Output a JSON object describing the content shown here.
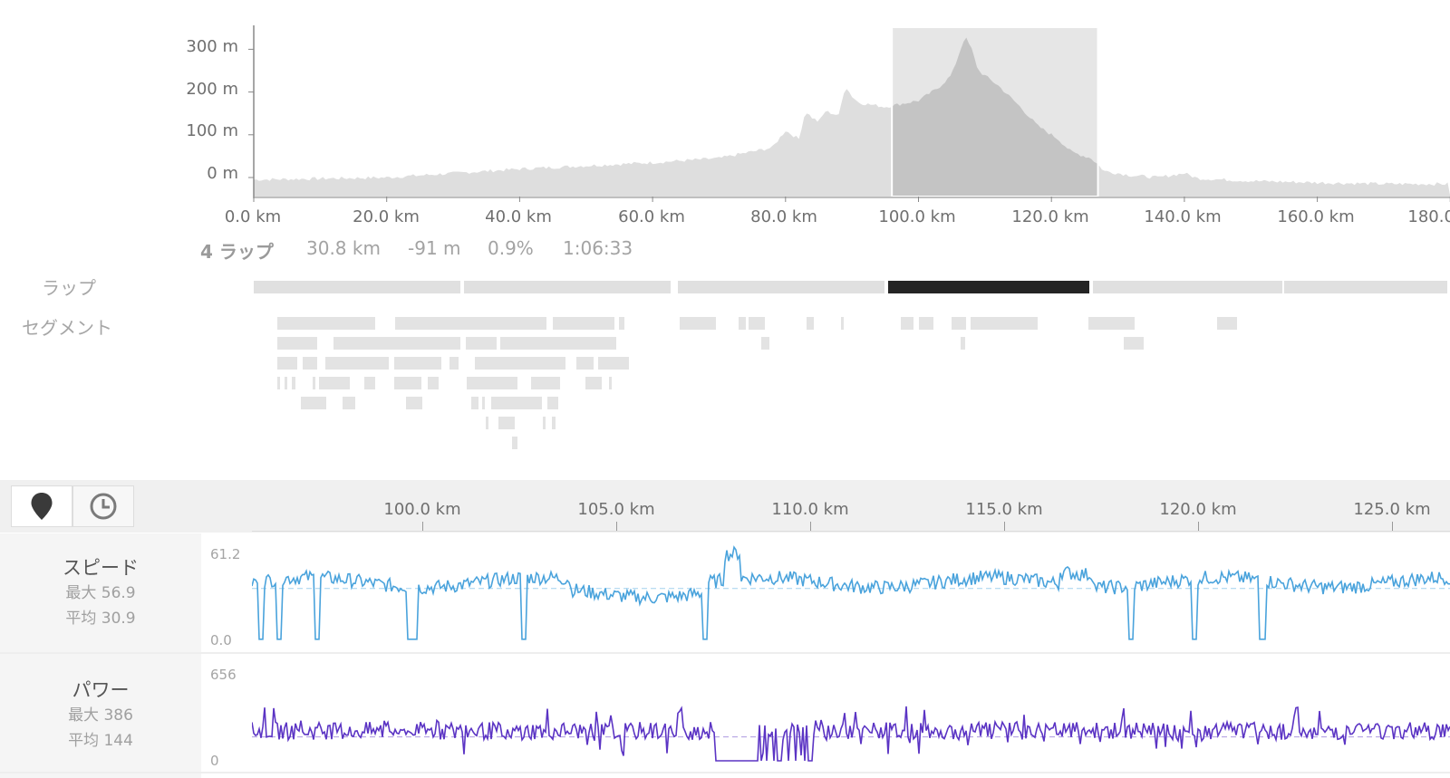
{
  "elevation_chart": {
    "y_ticks": [
      "300 m",
      "200 m",
      "100 m",
      "0 m"
    ],
    "x_ticks": [
      "0.0 km",
      "20.0 km",
      "40.0 km",
      "60.0 km",
      "80.0 km",
      "100.0 km",
      "120.0 km",
      "140.0 km",
      "160.0 km",
      "180.0 km"
    ],
    "selection_km": [
      96,
      127
    ]
  },
  "summary": {
    "lap_label": "4 ラップ",
    "distance": "30.8 km",
    "elevation": "-91 m",
    "grade": "0.9%",
    "time": "1:06:33"
  },
  "rows": {
    "laps_label": "ラップ",
    "segments_label": "セグメント"
  },
  "laps": {
    "count": 6,
    "active_index": 3
  },
  "toolbar": {
    "distance_button_icon": "map-pin-icon",
    "time_button_icon": "clock-icon"
  },
  "detail_axis": {
    "ticks": [
      "100.0 km",
      "105.0 km",
      "110.0 km",
      "115.0 km",
      "120.0 km",
      "125.0 km"
    ]
  },
  "speed": {
    "title": "スピード",
    "max_label": "最大 56.9",
    "avg_label": "平均 30.9",
    "scale_max": "61.2",
    "scale_min": "0.0",
    "color": "#4aa3dc"
  },
  "power": {
    "title": "パワー",
    "max_label": "最大 386",
    "avg_label": "平均 144",
    "scale_max": "656",
    "scale_min": "0",
    "color": "#5b34c4"
  },
  "colors": {
    "elevation_fill": "#dedede",
    "selection_overlay": "#c4c4c4",
    "active_lap": "#242424"
  }
}
